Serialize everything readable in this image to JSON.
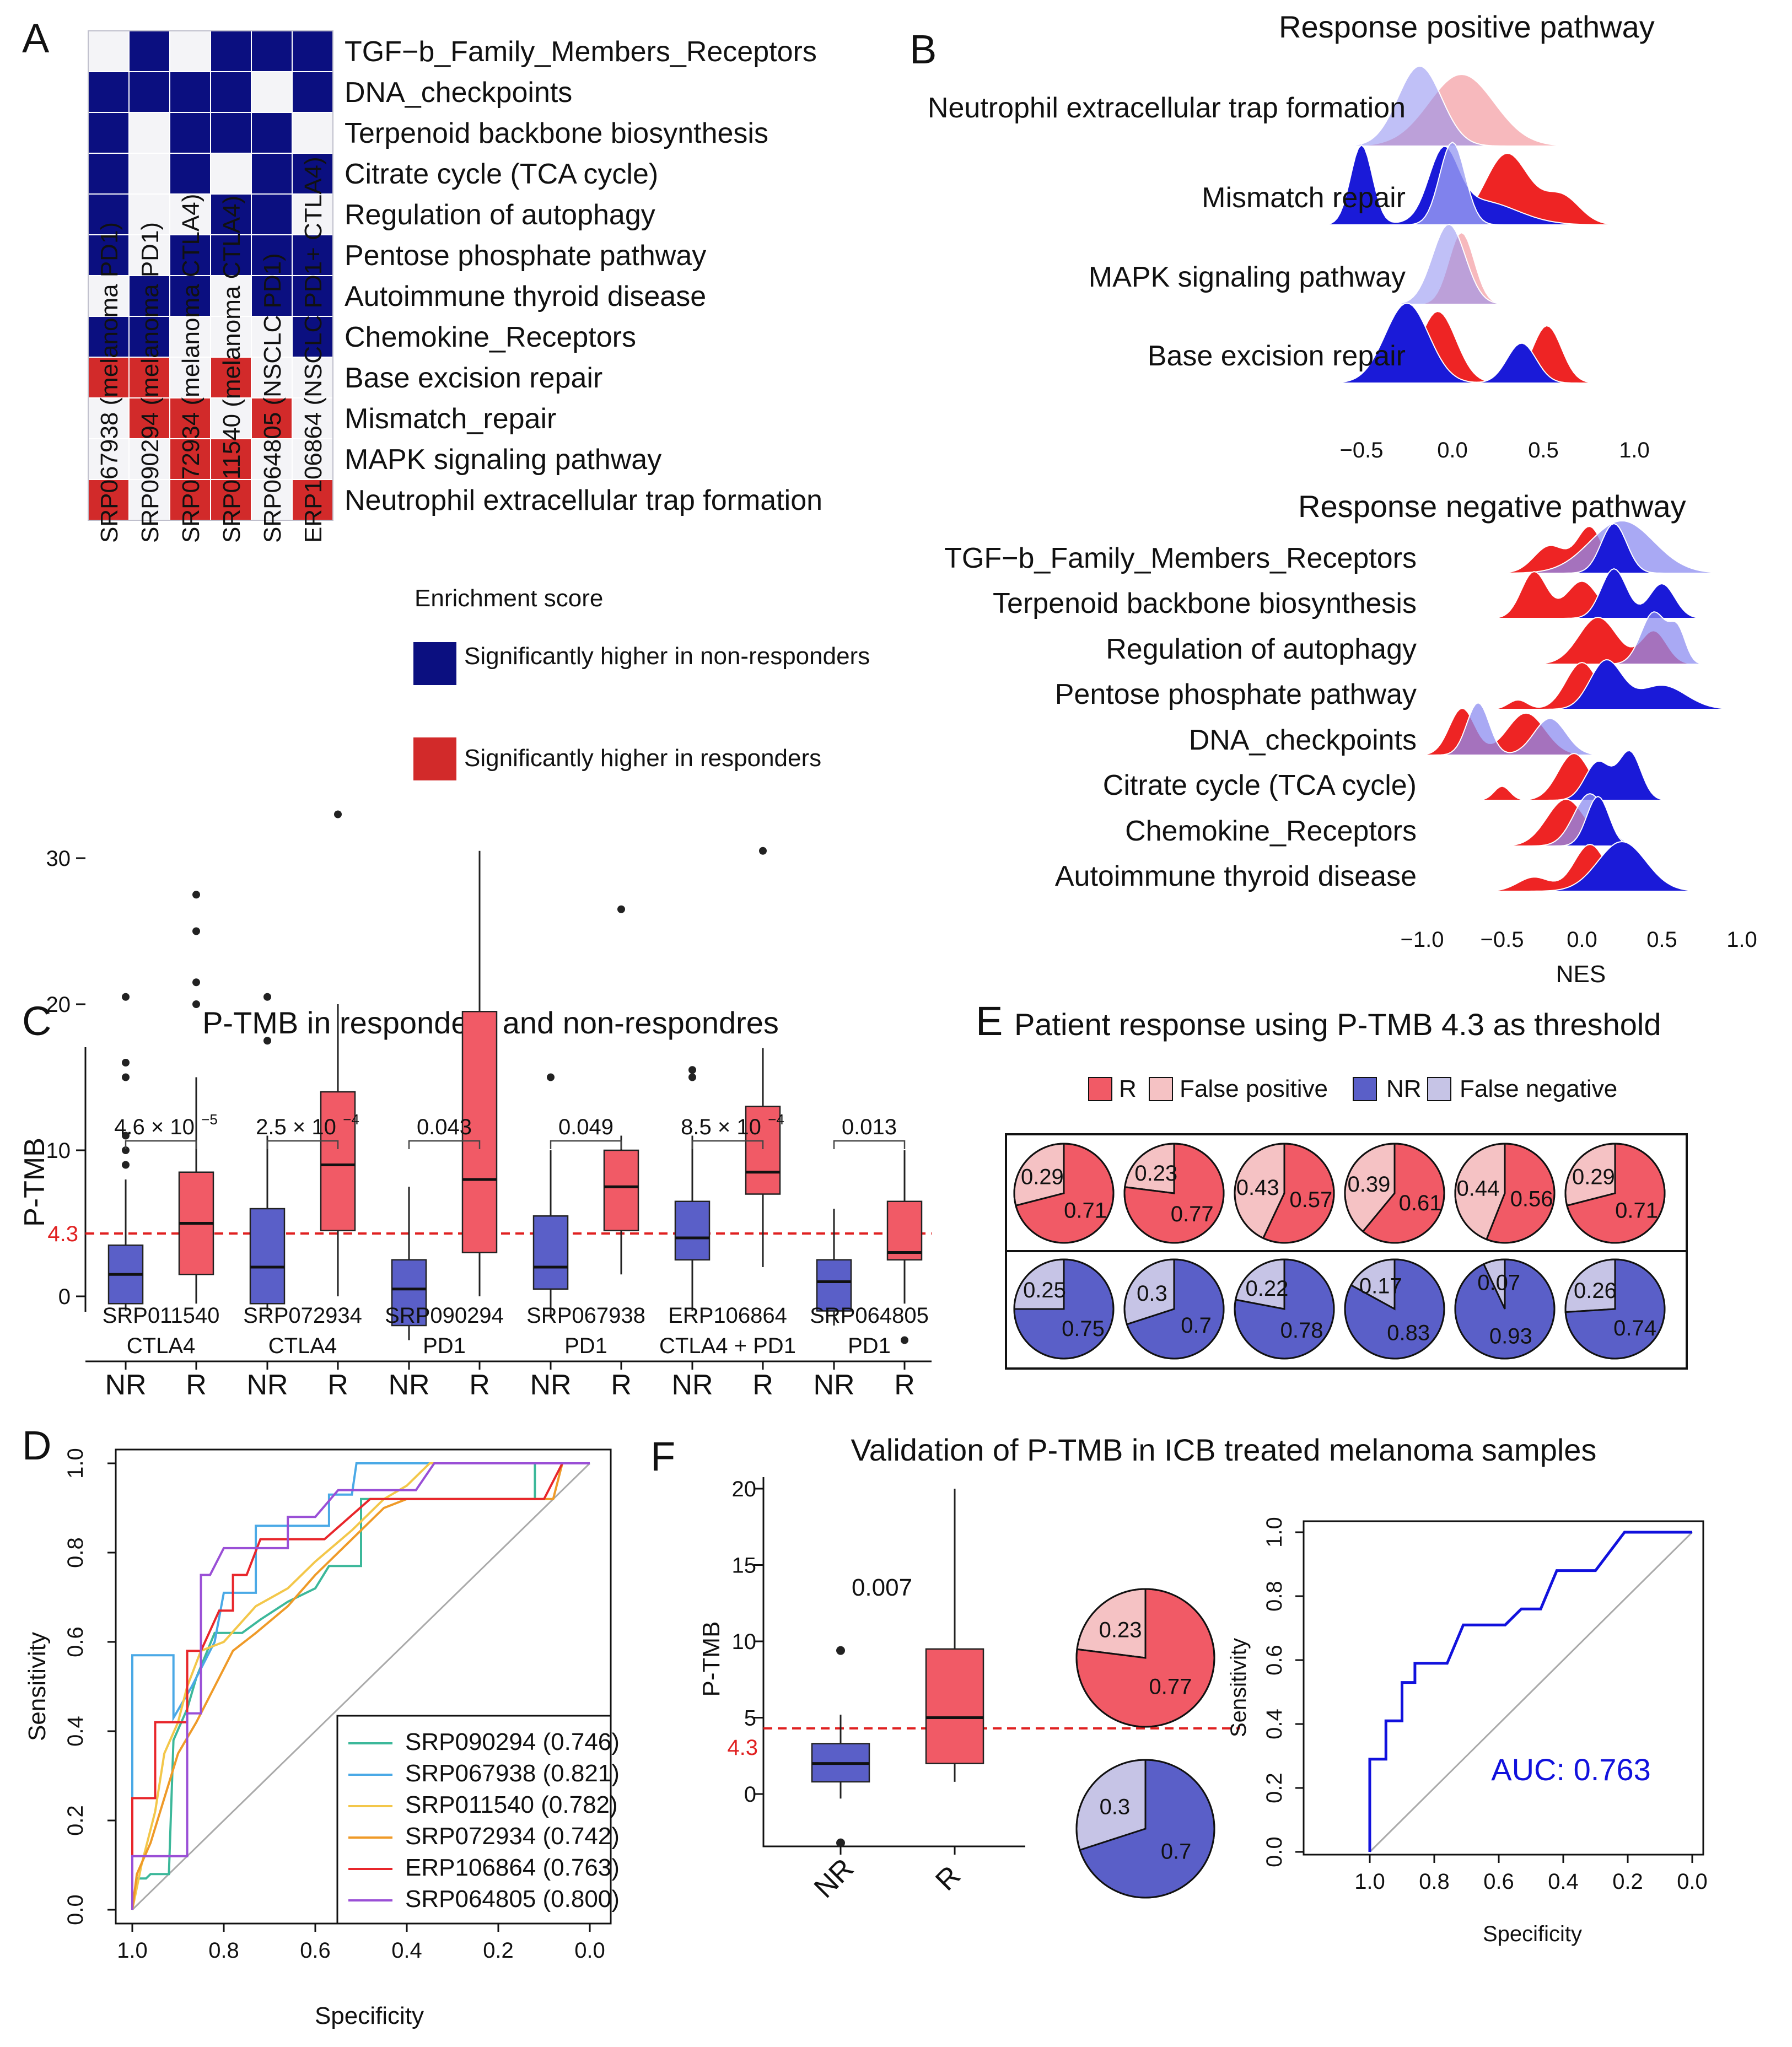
{
  "panels": {
    "A": "A",
    "B": "B",
    "C": "C",
    "D": "D",
    "E": "E",
    "F": "F"
  },
  "chart_data": [
    {
      "id": "A",
      "type": "heatmap",
      "rows": [
        "TGF−b_Family_Members_Receptors",
        "DNA_checkpoints",
        "Terpenoid backbone biosynthesis",
        "Citrate cycle (TCA cycle)",
        "Regulation of autophagy",
        "Pentose phosphate pathway",
        "Autoimmune thyroid disease",
        "Chemokine_Receptors",
        "Base excision repair",
        "Mismatch_repair",
        "MAPK signaling pathway",
        "Neutrophil extracellular trap formation"
      ],
      "columns": [
        "SRP067938 (melanoma PD1)",
        "SRP090294 (melanoma PD1)",
        "SRP072934 (melanoma CTLA4)",
        "SRP011540 (melanoma CTLA4)",
        "SRP064805 (NSCLC PD1)",
        "ERP106864 (NSCLC PD1+ CTLA4)"
      ],
      "values": [
        [
          0,
          1,
          0,
          1,
          1,
          1
        ],
        [
          1,
          1,
          1,
          1,
          0,
          1
        ],
        [
          1,
          0,
          1,
          1,
          1,
          0
        ],
        [
          1,
          0,
          1,
          0,
          1,
          1
        ],
        [
          1,
          0,
          0,
          1,
          1,
          0
        ],
        [
          1,
          0,
          1,
          1,
          1,
          1
        ],
        [
          0,
          1,
          1,
          0,
          1,
          1
        ],
        [
          1,
          1,
          0,
          0,
          0,
          1
        ],
        [
          2,
          2,
          0,
          2,
          0,
          0
        ],
        [
          0,
          2,
          2,
          0,
          2,
          0
        ],
        [
          0,
          0,
          2,
          2,
          0,
          0
        ],
        [
          2,
          0,
          2,
          2,
          0,
          2
        ]
      ],
      "colors": {
        "0": "#f4f4f7",
        "1": "#0b0f80",
        "2": "#d22a2a"
      },
      "legend_title": "Enrichment score",
      "legend": [
        {
          "label": "Significantly higher in non-responders",
          "color": "#0b0f80"
        },
        {
          "label": "Significantly higher in responders",
          "color": "#d22a2a"
        }
      ]
    },
    {
      "id": "B1",
      "type": "area",
      "title": "Response positive pathway",
      "pathways": [
        "Neutrophil extracellular trap formation",
        "Mismatch repair",
        "MAPK signaling pathway",
        "Base excision repair"
      ],
      "x_ticks": [
        "−0.5",
        "0.0",
        "0.5",
        "1.0"
      ],
      "xlim": [
        -0.6,
        1.0
      ]
    },
    {
      "id": "B2",
      "type": "area",
      "title": "Response negative pathway",
      "pathways": [
        "TGF−b_Family_Members_Receptors",
        "Terpenoid backbone biosynthesis",
        "Regulation of autophagy",
        "Pentose phosphate pathway",
        "DNA_checkpoints",
        "Citrate cycle (TCA cycle)",
        "Chemokine_Receptors",
        "Autoimmune thyroid disease"
      ],
      "x_ticks": [
        "−1.0",
        "−0.5",
        "0.0",
        "0.5",
        "1.0"
      ],
      "xlim": [
        -1.0,
        1.0
      ],
      "xlabel": "NES"
    },
    {
      "id": "C",
      "type": "bar",
      "title": "P-TMB in responders and non-respondres",
      "ylabel": "P-TMB",
      "ylim": [
        -5,
        35
      ],
      "y_ticks": [
        "0",
        "10",
        "20",
        "30"
      ],
      "threshold": 4.3,
      "threshold_label": "4.3",
      "groups": [
        {
          "dataset": "SRP011540",
          "therapy": "CTLA4",
          "pvalue": "4.6 × 10",
          "pexp": "−5",
          "NR": {
            "q1": -0.5,
            "median": 1.5,
            "q3": 3.5,
            "lo": -1,
            "hi": 8,
            "out": [
              9,
              10,
              11,
              15,
              16,
              20.5
            ]
          },
          "R": {
            "q1": 1.5,
            "median": 5,
            "q3": 8.5,
            "lo": -0.5,
            "hi": 15,
            "out": [
              20,
              21.5,
              25,
              27.5
            ]
          }
        },
        {
          "dataset": "SRP072934",
          "therapy": "CTLA4",
          "pvalue": "2.5 × 10",
          "pexp": "−4",
          "NR": {
            "q1": -0.5,
            "median": 2,
            "q3": 6,
            "lo": -1,
            "hi": 11,
            "out": [
              17.5,
              20.5
            ]
          },
          "R": {
            "q1": 4.5,
            "median": 9,
            "q3": 14,
            "lo": 0,
            "hi": 20,
            "out": [
              33
            ]
          }
        },
        {
          "dataset": "SRP090294",
          "therapy": "PD1",
          "pvalue": "0.043",
          "pexp": "",
          "NR": {
            "q1": -2,
            "median": 0.5,
            "q3": 2.5,
            "lo": -3,
            "hi": 7.5,
            "out": []
          },
          "R": {
            "q1": 3,
            "median": 8,
            "q3": 19.5,
            "lo": 0,
            "hi": 30.5,
            "out": []
          }
        },
        {
          "dataset": "SRP067938",
          "therapy": "PD1",
          "pvalue": "0.049",
          "pexp": "",
          "NR": {
            "q1": 0.5,
            "median": 2,
            "q3": 5.5,
            "lo": -1.5,
            "hi": 10,
            "out": [
              15
            ]
          },
          "R": {
            "q1": 4.5,
            "median": 7.5,
            "q3": 10,
            "lo": 1.5,
            "hi": 11,
            "out": [
              26.5
            ]
          }
        },
        {
          "dataset": "ERP106864",
          "therapy": "CTLA4 + PD1",
          "pvalue": "8.5 × 10",
          "pexp": "−4",
          "NR": {
            "q1": 2.5,
            "median": 4,
            "q3": 6.5,
            "lo": -1,
            "hi": 11,
            "out": [
              15,
              15.5
            ]
          },
          "R": {
            "q1": 7,
            "median": 8.5,
            "q3": 13,
            "lo": 2,
            "hi": 17,
            "out": [
              30.5
            ]
          }
        },
        {
          "dataset": "SRP064805",
          "therapy": "PD1",
          "pvalue": "0.013",
          "pexp": "",
          "NR": {
            "q1": -1,
            "median": 1,
            "q3": 2.5,
            "lo": -2,
            "hi": 6,
            "out": []
          },
          "R": {
            "q1": 2.5,
            "median": 3,
            "q3": 6.5,
            "lo": -0.5,
            "hi": 10,
            "out": [
              -3
            ]
          }
        }
      ],
      "categories": [
        "NR",
        "R"
      ],
      "colors": {
        "NR": "#5a5fc8",
        "R": "#f15a66"
      }
    },
    {
      "id": "D",
      "type": "line",
      "xlabel": "Specificity",
      "ylabel": "Sensitivity",
      "x_ticks": [
        "1.0",
        "0.8",
        "0.6",
        "0.4",
        "0.2",
        "0.0"
      ],
      "y_ticks": [
        "0.0",
        "0.2",
        "0.4",
        "0.6",
        "0.8",
        "1.0"
      ],
      "series": [
        {
          "name": "SRP090294 (0.746)",
          "color": "#3cb89a",
          "points": [
            [
              1,
              0
            ],
            [
              0.99,
              0.07
            ],
            [
              0.97,
              0.07
            ],
            [
              0.96,
              0.08
            ],
            [
              0.92,
              0.08
            ],
            [
              0.91,
              0.38
            ],
            [
              0.88,
              0.45
            ],
            [
              0.86,
              0.52
            ],
            [
              0.82,
              0.62
            ],
            [
              0.76,
              0.62
            ],
            [
              0.72,
              0.65
            ],
            [
              0.66,
              0.69
            ],
            [
              0.6,
              0.72
            ],
            [
              0.57,
              0.77
            ],
            [
              0.5,
              0.77
            ],
            [
              0.5,
              0.92
            ],
            [
              0.12,
              0.92
            ],
            [
              0.12,
              1.0
            ],
            [
              0,
              1.0
            ]
          ]
        },
        {
          "name": "SRP067938 (0.821)",
          "color": "#4aa9e6",
          "points": [
            [
              1,
              0
            ],
            [
              1,
              0.57
            ],
            [
              0.91,
              0.57
            ],
            [
              0.91,
              0.43
            ],
            [
              0.87,
              0.5
            ],
            [
              0.82,
              0.6
            ],
            [
              0.8,
              0.71
            ],
            [
              0.73,
              0.71
            ],
            [
              0.73,
              0.86
            ],
            [
              0.57,
              0.86
            ],
            [
              0.57,
              0.93
            ],
            [
              0.52,
              0.93
            ],
            [
              0.51,
              1.0
            ],
            [
              0,
              1.0
            ]
          ]
        },
        {
          "name": "SRP011540 (0.782)",
          "color": "#f3c74a",
          "points": [
            [
              1,
              0
            ],
            [
              0.98,
              0.1
            ],
            [
              0.95,
              0.22
            ],
            [
              0.93,
              0.35
            ],
            [
              0.9,
              0.42
            ],
            [
              0.88,
              0.5
            ],
            [
              0.85,
              0.58
            ],
            [
              0.8,
              0.6
            ],
            [
              0.73,
              0.68
            ],
            [
              0.66,
              0.72
            ],
            [
              0.6,
              0.78
            ],
            [
              0.52,
              0.85
            ],
            [
              0.45,
              0.92
            ],
            [
              0.4,
              0.95
            ],
            [
              0.35,
              1.0
            ],
            [
              0,
              1.0
            ]
          ]
        },
        {
          "name": "SRP072934 (0.742)",
          "color": "#ef9a28",
          "points": [
            [
              1,
              0
            ],
            [
              0.99,
              0.08
            ],
            [
              0.96,
              0.15
            ],
            [
              0.93,
              0.25
            ],
            [
              0.9,
              0.35
            ],
            [
              0.86,
              0.42
            ],
            [
              0.82,
              0.5
            ],
            [
              0.78,
              0.58
            ],
            [
              0.73,
              0.62
            ],
            [
              0.66,
              0.68
            ],
            [
              0.6,
              0.75
            ],
            [
              0.52,
              0.83
            ],
            [
              0.45,
              0.9
            ],
            [
              0.4,
              0.92
            ],
            [
              0.08,
              0.92
            ],
            [
              0.06,
              1.0
            ],
            [
              0,
              1.0
            ]
          ]
        },
        {
          "name": "ERP106864 (0.763)",
          "color": "#e8262b",
          "points": [
            [
              1,
              0
            ],
            [
              1,
              0.25
            ],
            [
              0.95,
              0.25
            ],
            [
              0.95,
              0.42
            ],
            [
              0.88,
              0.42
            ],
            [
              0.88,
              0.58
            ],
            [
              0.85,
              0.58
            ],
            [
              0.81,
              0.67
            ],
            [
              0.78,
              0.67
            ],
            [
              0.78,
              0.75
            ],
            [
              0.75,
              0.75
            ],
            [
              0.72,
              0.83
            ],
            [
              0.6,
              0.83
            ],
            [
              0.58,
              0.83
            ],
            [
              0.48,
              0.92
            ],
            [
              0.1,
              0.92
            ],
            [
              0.06,
              1.0
            ],
            [
              0,
              1.0
            ]
          ]
        },
        {
          "name": "SRP064805 (0.800)",
          "color": "#9a4fd6",
          "points": [
            [
              1,
              0
            ],
            [
              1,
              0.12
            ],
            [
              0.88,
              0.12
            ],
            [
              0.88,
              0.44
            ],
            [
              0.85,
              0.44
            ],
            [
              0.85,
              0.75
            ],
            [
              0.83,
              0.75
            ],
            [
              0.8,
              0.81
            ],
            [
              0.66,
              0.81
            ],
            [
              0.66,
              0.88
            ],
            [
              0.6,
              0.88
            ],
            [
              0.55,
              0.94
            ],
            [
              0.38,
              0.94
            ],
            [
              0.34,
              1.0
            ],
            [
              0,
              1.0
            ]
          ]
        }
      ]
    },
    {
      "id": "E",
      "type": "pie",
      "title": "Patient response using P-TMB 4.3 as threshold",
      "legend": [
        {
          "label": "R",
          "color": "#f15a66"
        },
        {
          "label": "False positive",
          "color": "#f5c2c4"
        },
        {
          "label": "NR",
          "color": "#5a5fc8"
        },
        {
          "label": "False negative",
          "color": "#c6c4e6"
        }
      ],
      "responders": [
        [
          0.29,
          0.71
        ],
        [
          0.23,
          0.77
        ],
        [
          0.43,
          0.57
        ],
        [
          0.39,
          0.61
        ],
        [
          0.44,
          0.56
        ],
        [
          0.29,
          0.71
        ]
      ],
      "nonresponders": [
        [
          0.25,
          0.75
        ],
        [
          0.3,
          0.7
        ],
        [
          0.22,
          0.78
        ],
        [
          0.17,
          0.83
        ],
        [
          0.07,
          0.93
        ],
        [
          0.26,
          0.74
        ]
      ],
      "labels_r": [
        [
          "0.29",
          "0.71"
        ],
        [
          "0.23",
          "0.77"
        ],
        [
          "0.43",
          "0.57"
        ],
        [
          "0.39",
          "0.61"
        ],
        [
          "0.44",
          "0.56"
        ],
        [
          "0.29",
          "0.71"
        ]
      ],
      "labels_nr": [
        [
          "0.25",
          "0.75"
        ],
        [
          "0.3",
          "0.7"
        ],
        [
          "0.22",
          "0.78"
        ],
        [
          "0.17",
          "0.83"
        ],
        [
          "0.07",
          "0.93"
        ],
        [
          "0.26",
          "0.74"
        ]
      ]
    },
    {
      "id": "F",
      "type": "bar",
      "title": "Validation of P-TMB in ICB treated melanoma samples",
      "ylabel": "P-TMB",
      "y_ticks": [
        "0",
        "5",
        "10",
        "15",
        "20"
      ],
      "ylim": [
        -3.5,
        21
      ],
      "threshold": 4.3,
      "threshold_label": "4.3",
      "pvalue": "0.007",
      "categories": [
        "NR",
        "R"
      ],
      "NR": {
        "q1": 0.8,
        "median": 2,
        "q3": 3.3,
        "lo": -0.3,
        "hi": 5.2,
        "out": [
          9.4,
          -3.2
        ]
      },
      "R": {
        "q1": 2,
        "median": 5,
        "q3": 9.5,
        "lo": 0.8,
        "hi": 20,
        "out": []
      },
      "pie_r": [
        0.23,
        0.77
      ],
      "pie_nr": [
        0.3,
        0.7
      ],
      "pie_r_labels": [
        "0.23",
        "0.77"
      ],
      "pie_nr_labels": [
        "0.3",
        "0.7"
      ],
      "roc": {
        "xlabel": "Specificity",
        "ylabel": "Sensitivity",
        "auc_label": "AUC: 0.763",
        "x_ticks": [
          "1.0",
          "0.8",
          "0.6",
          "0.4",
          "0.2",
          "0.0"
        ],
        "y_ticks": [
          "0.0",
          "0.2",
          "0.4",
          "0.6",
          "0.8",
          "1.0"
        ],
        "color": "#1111dd",
        "points": [
          [
            1,
            0
          ],
          [
            1,
            0.29
          ],
          [
            0.95,
            0.29
          ],
          [
            0.95,
            0.41
          ],
          [
            0.9,
            0.41
          ],
          [
            0.9,
            0.53
          ],
          [
            0.86,
            0.53
          ],
          [
            0.86,
            0.59
          ],
          [
            0.76,
            0.59
          ],
          [
            0.71,
            0.71
          ],
          [
            0.58,
            0.71
          ],
          [
            0.53,
            0.76
          ],
          [
            0.47,
            0.76
          ],
          [
            0.42,
            0.88
          ],
          [
            0.3,
            0.88
          ],
          [
            0.21,
            1.0
          ],
          [
            0,
            1.0
          ]
        ]
      }
    }
  ]
}
